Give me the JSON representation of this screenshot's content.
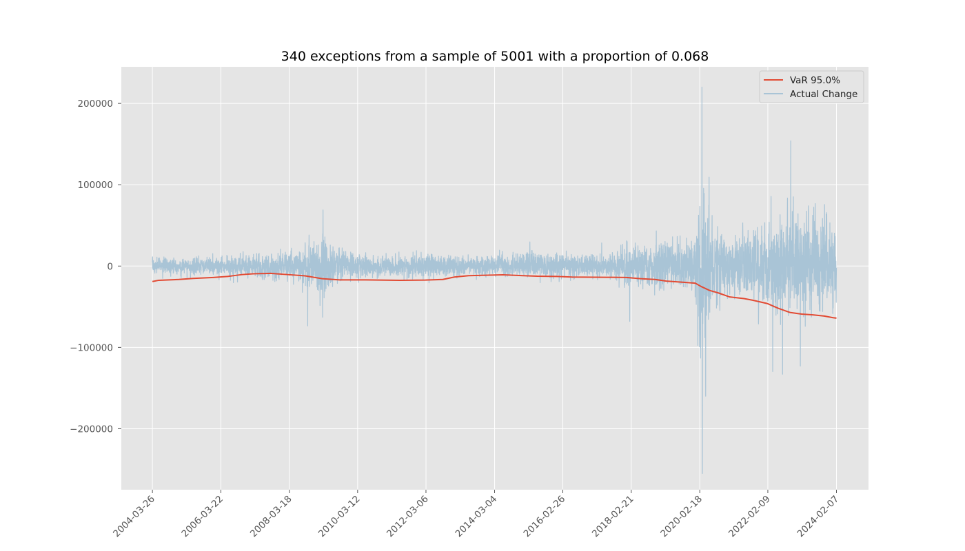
{
  "chart_data": {
    "type": "line",
    "title": "340 exceptions from a sample of 5001 with a proportion of 0.068",
    "xlabel": "",
    "ylabel": "",
    "x_axis_type": "date",
    "xlim": [
      "2003-05-01",
      "2025-01-12"
    ],
    "ylim": [
      -275000,
      245000
    ],
    "grid": true,
    "legend_position": "top-right",
    "x_tick_labels": [
      "2004-03-26",
      "2006-03-22",
      "2008-03-18",
      "2010-03-12",
      "2012-03-06",
      "2014-03-04",
      "2016-02-26",
      "2018-02-21",
      "2020-02-18",
      "2022-02-09",
      "2024-02-07"
    ],
    "y_ticks": [
      -200000,
      -100000,
      0,
      100000,
      200000
    ],
    "y_tick_labels": [
      "−200000",
      "−100000",
      "0",
      "100000",
      "200000"
    ],
    "colors": {
      "var": "#E24A33",
      "actual": "#a9c4d6",
      "plot_background": "#E5E5E5",
      "grid": "#ffffff"
    },
    "series": [
      {
        "name": "VaR 95.0%",
        "color": "#E24A33",
        "points": [
          [
            "2004-03-26",
            -19000
          ],
          [
            "2004-06-01",
            -17500
          ],
          [
            "2005-01-01",
            -16500
          ],
          [
            "2005-06-01",
            -15200
          ],
          [
            "2006-01-01",
            -14000
          ],
          [
            "2006-06-01",
            -12800
          ],
          [
            "2006-11-01",
            -10500
          ],
          [
            "2007-03-01",
            -9500
          ],
          [
            "2007-09-01",
            -9000
          ],
          [
            "2008-03-01",
            -10500
          ],
          [
            "2008-09-01",
            -12000
          ],
          [
            "2009-03-01",
            -15500
          ],
          [
            "2009-09-01",
            -17000
          ],
          [
            "2010-06-01",
            -17000
          ],
          [
            "2011-06-01",
            -17500
          ],
          [
            "2012-03-01",
            -17200
          ],
          [
            "2012-09-01",
            -16500
          ],
          [
            "2013-01-01",
            -13500
          ],
          [
            "2013-06-01",
            -11800
          ],
          [
            "2014-01-01",
            -11200
          ],
          [
            "2014-06-01",
            -10800
          ],
          [
            "2015-01-01",
            -11800
          ],
          [
            "2015-06-01",
            -12500
          ],
          [
            "2016-01-01",
            -12800
          ],
          [
            "2016-06-01",
            -13500
          ],
          [
            "2017-06-01",
            -13800
          ],
          [
            "2018-01-01",
            -14000
          ],
          [
            "2018-06-01",
            -15500
          ],
          [
            "2018-11-01",
            -16500
          ],
          [
            "2019-03-01",
            -18500
          ],
          [
            "2019-09-01",
            -20000
          ],
          [
            "2020-01-01",
            -21000
          ],
          [
            "2020-03-01",
            -25000
          ],
          [
            "2020-06-01",
            -30000
          ],
          [
            "2020-09-01",
            -33000
          ],
          [
            "2021-01-01",
            -38000
          ],
          [
            "2021-06-01",
            -40000
          ],
          [
            "2021-09-01",
            -42000
          ],
          [
            "2022-02-01",
            -46000
          ],
          [
            "2022-06-01",
            -52000
          ],
          [
            "2022-10-01",
            -57000
          ],
          [
            "2023-02-01",
            -59000
          ],
          [
            "2023-06-01",
            -60000
          ],
          [
            "2023-10-01",
            -61500
          ],
          [
            "2024-01-01",
            -63500
          ],
          [
            "2024-02-07",
            -64000
          ]
        ]
      },
      {
        "name": "Actual Change",
        "color": "#a9c4d6",
        "approximate_range": {
          "min": -255000,
          "max": 220000
        },
        "volatility_profile": [
          [
            "2004-03-26",
            8000
          ],
          [
            "2006-03-01",
            9000
          ],
          [
            "2007-06-01",
            14000
          ],
          [
            "2008-06-01",
            18000
          ],
          [
            "2009-03-01",
            35000
          ],
          [
            "2009-09-01",
            20000
          ],
          [
            "2010-06-01",
            10000
          ],
          [
            "2012-06-01",
            12000
          ],
          [
            "2013-06-01",
            9000
          ],
          [
            "2015-06-01",
            14000
          ],
          [
            "2016-06-01",
            14000
          ],
          [
            "2017-06-01",
            10000
          ],
          [
            "2018-01-01",
            20000
          ],
          [
            "2019-06-01",
            28000
          ],
          [
            "2020-01-01",
            28000
          ],
          [
            "2020-03-01",
            90000
          ],
          [
            "2020-07-01",
            40000
          ],
          [
            "2021-06-01",
            35000
          ],
          [
            "2022-06-01",
            55000
          ],
          [
            "2023-06-01",
            55000
          ],
          [
            "2024-02-07",
            50000
          ]
        ],
        "notable_points": [
          [
            "2009-03-10",
            69000
          ],
          [
            "2009-03-05",
            -63000
          ],
          [
            "2018-02-05",
            -68000
          ],
          [
            "2020-03-12",
            220000
          ],
          [
            "2020-03-16",
            -255000
          ],
          [
            "2020-04-20",
            -160000
          ],
          [
            "2022-10-10",
            154000
          ],
          [
            "2023-01-20",
            -123000
          ],
          [
            "2022-07-15",
            -133000
          ]
        ]
      }
    ]
  }
}
